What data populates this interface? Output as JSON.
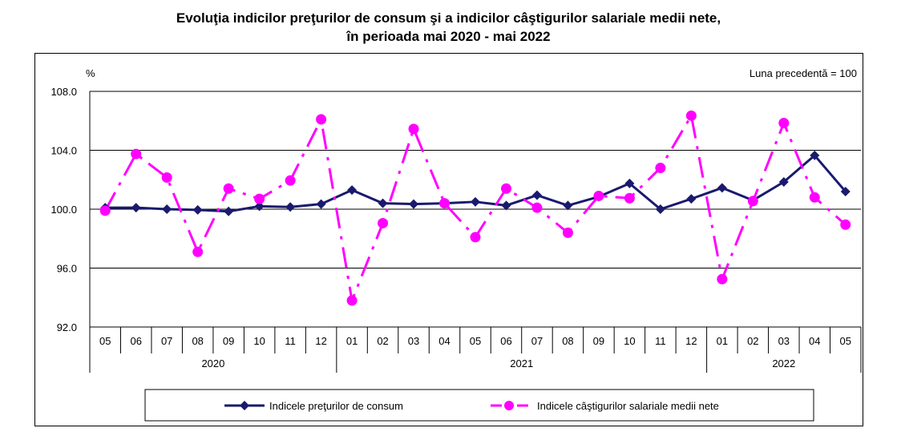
{
  "title_line1": "Evoluţia indicilor preţurilor de consum şi a indicilor câştigurilor salariale medii nete,",
  "title_line2": "în perioada mai 2020 - mai 2022",
  "chart_data": {
    "type": "line",
    "ylabel": "%",
    "annotation": "Luna precedentă = 100",
    "ylim": [
      92,
      108
    ],
    "yticks": [
      "108.0",
      "104.0",
      "100.0",
      "96.0",
      "92.0"
    ],
    "ytick_values": [
      108,
      104,
      100,
      96,
      92
    ],
    "grid": true,
    "legend_position": "bottom",
    "categories": [
      "05",
      "06",
      "07",
      "08",
      "09",
      "10",
      "11",
      "12",
      "01",
      "02",
      "03",
      "04",
      "05",
      "06",
      "07",
      "08",
      "09",
      "10",
      "11",
      "12",
      "01",
      "02",
      "03",
      "04",
      "05"
    ],
    "year_groups": [
      {
        "label": "2020",
        "start": 0,
        "end": 7
      },
      {
        "label": "2021",
        "start": 8,
        "end": 19
      },
      {
        "label": "2022",
        "start": 20,
        "end": 24
      }
    ],
    "series": [
      {
        "name": "Indicele preţurilor de consum",
        "color": "#1a1a6e",
        "style": "solid",
        "values": [
          100.1,
          100.1,
          100.0,
          99.95,
          99.85,
          100.2,
          100.15,
          100.35,
          101.3,
          100.4,
          100.35,
          100.4,
          100.5,
          100.25,
          100.95,
          100.25,
          100.85,
          101.75,
          100.0,
          100.7,
          101.45,
          100.6,
          101.85,
          103.65,
          101.2
        ]
      },
      {
        "name": "Indicele câştigurilor salariale medii nete",
        "color": "#ff00ff",
        "style": "dashdot",
        "values": [
          99.9,
          103.75,
          102.15,
          97.1,
          101.4,
          100.7,
          101.95,
          106.1,
          93.8,
          99.05,
          105.45,
          100.4,
          98.1,
          101.4,
          100.1,
          98.4,
          100.9,
          100.75,
          102.8,
          106.35,
          95.25,
          100.55,
          105.85,
          100.8,
          98.95
        ]
      }
    ]
  }
}
